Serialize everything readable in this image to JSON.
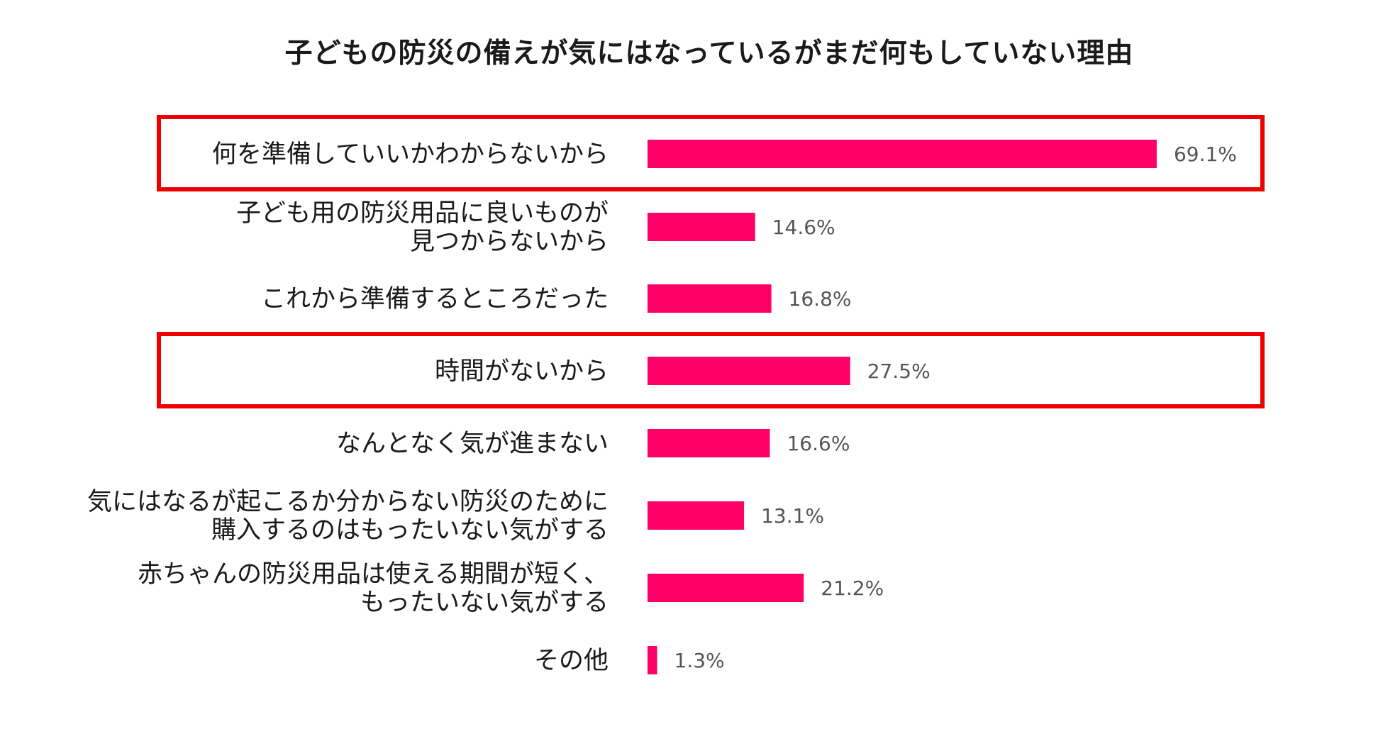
{
  "chart_data": {
    "type": "bar",
    "orientation": "horizontal",
    "title": "子どもの防災の備えが気にはなっているがまだ何もしていない理由",
    "unit": "%",
    "xlim": [
      0,
      100
    ],
    "grid": false,
    "legend": "none",
    "categories": [
      [
        "何を準備していいかわからないから"
      ],
      [
        "子ども用の防災用品に良いものが",
        "見つからないから"
      ],
      [
        "これから準備するところだった"
      ],
      [
        "時間がないから"
      ],
      [
        "なんとなく気が進まない"
      ],
      [
        "気にはなるが起こるか分からない防災のために",
        "購入するのはもったいない気がする"
      ],
      [
        "赤ちゃんの防災用品は使える期間が短く、",
        "もったいない気がする"
      ],
      [
        "その他"
      ]
    ],
    "values": [
      69.1,
      14.6,
      16.8,
      27.5,
      16.6,
      13.1,
      21.2,
      1.3
    ],
    "value_labels": [
      "69.1%",
      "14.6%",
      "16.8%",
      "27.5%",
      "16.6%",
      "13.1%",
      "21.2%",
      "1.3%"
    ],
    "highlighted": [
      0,
      3
    ],
    "colors": {
      "bar": "#ff0066",
      "highlight_box": "#ee0000",
      "label_text": "#1a1a1a",
      "value_text": "#555555"
    }
  }
}
